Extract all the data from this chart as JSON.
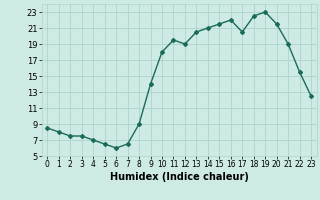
{
  "x": [
    0,
    1,
    2,
    3,
    4,
    5,
    6,
    7,
    8,
    9,
    10,
    11,
    12,
    13,
    14,
    15,
    16,
    17,
    18,
    19,
    20,
    21,
    22,
    23
  ],
  "y": [
    8.5,
    8.0,
    7.5,
    7.5,
    7.0,
    6.5,
    6.0,
    6.5,
    9.0,
    14.0,
    18.0,
    19.5,
    19.0,
    20.5,
    21.0,
    21.5,
    22.0,
    20.5,
    22.5,
    23.0,
    21.5,
    19.0,
    15.5,
    12.5
  ],
  "xlabel": "Humidex (Indice chaleur)",
  "xlim": [
    -0.5,
    23.5
  ],
  "ylim": [
    5,
    24
  ],
  "yticks": [
    5,
    7,
    9,
    11,
    13,
    15,
    17,
    19,
    21,
    23
  ],
  "xticks": [
    0,
    1,
    2,
    3,
    4,
    5,
    6,
    7,
    8,
    9,
    10,
    11,
    12,
    13,
    14,
    15,
    16,
    17,
    18,
    19,
    20,
    21,
    22,
    23
  ],
  "line_color": "#1a6b5a",
  "marker": "D",
  "marker_size": 2.0,
  "bg_color": "#ceeae4",
  "grid_color": "#aed4cc",
  "spine_color": "#aed4cc"
}
